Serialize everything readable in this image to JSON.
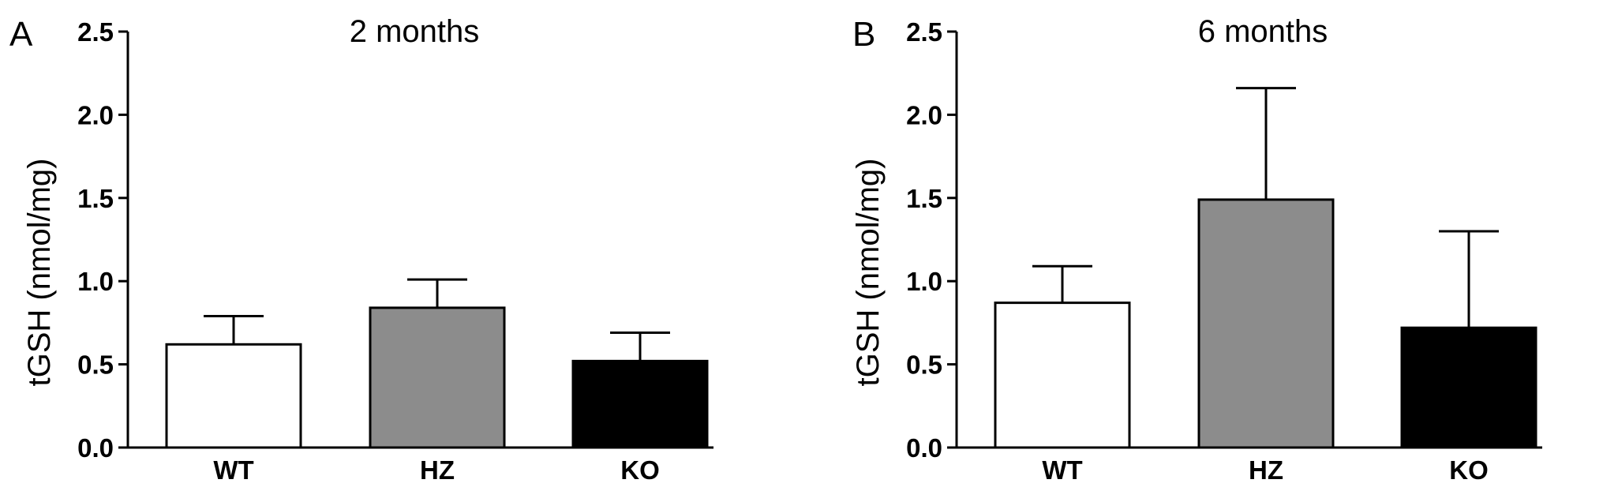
{
  "chart_data": [
    {
      "type": "bar",
      "panel_letter": "A",
      "title": "2 months",
      "ylabel": "tGSH (nmol/mg)",
      "xlabel": "",
      "categories": [
        "WT",
        "HZ",
        "KO"
      ],
      "values": [
        0.62,
        0.84,
        0.52
      ],
      "error_upper": [
        0.79,
        1.01,
        0.69
      ],
      "bar_colors": [
        "#ffffff",
        "#8c8c8c",
        "#000000"
      ],
      "ylim": [
        0,
        2.5
      ],
      "yticks": [
        "0.0",
        "0.5",
        "1.0",
        "1.5",
        "2.0",
        "2.5"
      ],
      "grid": false
    },
    {
      "type": "bar",
      "panel_letter": "B",
      "title": "6 months",
      "ylabel": "tGSH (nmol/mg)",
      "xlabel": "",
      "categories": [
        "WT",
        "HZ",
        "KO"
      ],
      "values": [
        0.87,
        1.49,
        0.72
      ],
      "error_upper": [
        1.09,
        2.16,
        1.3
      ],
      "bar_colors": [
        "#ffffff",
        "#8c8c8c",
        "#000000"
      ],
      "ylim": [
        0,
        2.5
      ],
      "yticks": [
        "0.0",
        "0.5",
        "1.0",
        "1.5",
        "2.0",
        "2.5"
      ],
      "grid": false
    }
  ]
}
